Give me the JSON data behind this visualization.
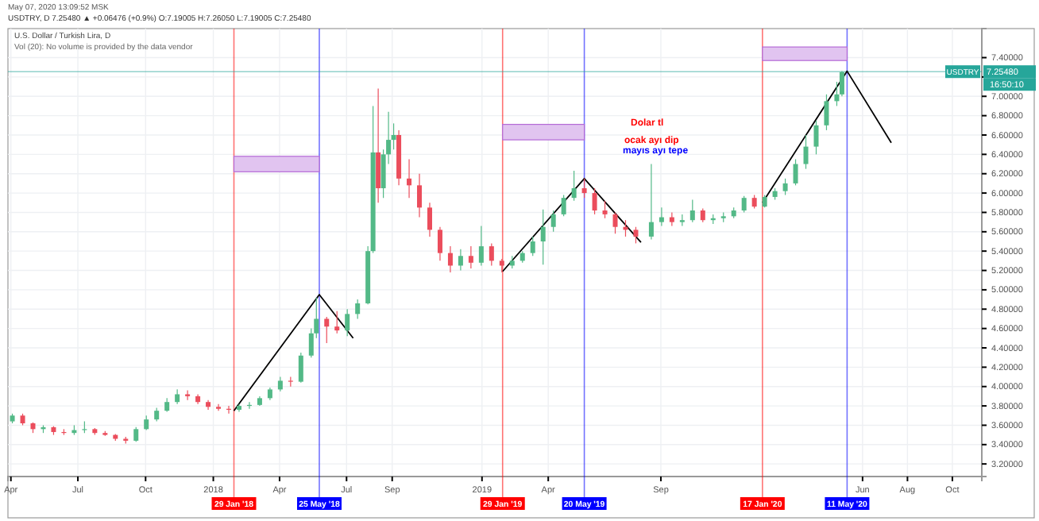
{
  "chart_data": {
    "type": "candlestick",
    "title": "U.S. Dollar / Turkish Lira, D",
    "subtitle": "USDTRY, D 7.25480 ▲ +0.06476 (+0.9%) O:7.19005 H:7.26050 L:7.19005 C:7.25480",
    "annotations": [
      "May 07, 2020 13:09:52 MSK",
      "Vol (20): No volume is provided by the data vendor",
      "Dolar tl",
      "ocak ayı dip",
      "mayıs ayı tepe",
      "USDTRY",
      "16:50:10"
    ],
    "x": [
      "2017-04-03",
      "2017-04-17",
      "2017-05-01",
      "2017-05-15",
      "2017-05-29",
      "2017-06-12",
      "2017-06-26",
      "2017-07-10",
      "2017-07-24",
      "2017-08-07",
      "2017-08-21",
      "2017-09-04",
      "2017-09-18",
      "2017-10-02",
      "2017-10-16",
      "2017-10-30",
      "2017-11-13",
      "2017-11-27",
      "2017-12-11",
      "2017-12-25",
      "2018-01-08",
      "2018-01-22",
      "2018-02-05",
      "2018-02-19",
      "2018-03-05",
      "2018-03-19",
      "2018-04-02",
      "2018-04-16",
      "2018-04-30",
      "2018-05-14",
      "2018-05-21",
      "2018-06-04",
      "2018-06-18",
      "2018-07-02",
      "2018-07-16",
      "2018-07-30",
      "2018-08-06",
      "2018-08-13",
      "2018-08-20",
      "2018-08-27",
      "2018-09-03",
      "2018-09-10",
      "2018-09-24",
      "2018-10-08",
      "2018-10-22",
      "2018-11-05",
      "2018-11-19",
      "2018-12-03",
      "2018-12-17",
      "2018-12-31",
      "2019-01-14",
      "2019-01-28",
      "2019-02-11",
      "2019-02-25",
      "2019-03-11",
      "2019-03-25",
      "2019-04-08",
      "2019-04-22",
      "2019-05-06",
      "2019-05-20",
      "2019-06-03",
      "2019-06-17",
      "2019-07-01",
      "2019-07-15",
      "2019-07-29",
      "2019-08-19",
      "2019-09-02",
      "2019-09-16",
      "2019-09-30",
      "2019-10-14",
      "2019-10-28",
      "2019-11-11",
      "2019-11-25",
      "2019-12-09",
      "2019-12-23",
      "2020-01-06",
      "2020-01-20",
      "2020-02-03",
      "2020-02-17",
      "2020-03-02",
      "2020-03-16",
      "2020-03-30",
      "2020-04-13",
      "2020-04-27",
      "2020-05-04"
    ],
    "ohlc": [
      [
        3.64,
        3.72,
        3.62,
        3.7
      ],
      [
        3.7,
        3.72,
        3.6,
        3.62
      ],
      [
        3.62,
        3.63,
        3.52,
        3.56
      ],
      [
        3.56,
        3.6,
        3.52,
        3.58
      ],
      [
        3.58,
        3.59,
        3.5,
        3.53
      ],
      [
        3.53,
        3.56,
        3.5,
        3.52
      ],
      [
        3.52,
        3.6,
        3.5,
        3.55
      ],
      [
        3.55,
        3.64,
        3.52,
        3.56
      ],
      [
        3.56,
        3.57,
        3.5,
        3.52
      ],
      [
        3.52,
        3.54,
        3.49,
        3.5
      ],
      [
        3.5,
        3.51,
        3.44,
        3.46
      ],
      [
        3.46,
        3.48,
        3.41,
        3.44
      ],
      [
        3.44,
        3.58,
        3.43,
        3.56
      ],
      [
        3.56,
        3.7,
        3.55,
        3.66
      ],
      [
        3.66,
        3.78,
        3.64,
        3.75
      ],
      [
        3.75,
        3.88,
        3.74,
        3.84
      ],
      [
        3.84,
        3.97,
        3.82,
        3.92
      ],
      [
        3.92,
        3.96,
        3.86,
        3.9
      ],
      [
        3.9,
        3.92,
        3.82,
        3.84
      ],
      [
        3.84,
        3.86,
        3.76,
        3.79
      ],
      [
        3.79,
        3.82,
        3.75,
        3.77
      ],
      [
        3.77,
        3.8,
        3.72,
        3.76
      ],
      [
        3.76,
        3.82,
        3.74,
        3.8
      ],
      [
        3.8,
        3.84,
        3.77,
        3.81
      ],
      [
        3.81,
        3.9,
        3.8,
        3.88
      ],
      [
        3.88,
        3.99,
        3.86,
        3.97
      ],
      [
        3.97,
        4.1,
        3.95,
        4.06
      ],
      [
        4.06,
        4.1,
        4.0,
        4.05
      ],
      [
        4.05,
        4.35,
        4.04,
        4.32
      ],
      [
        4.32,
        4.6,
        4.3,
        4.55
      ],
      [
        4.55,
        4.92,
        4.5,
        4.7
      ],
      [
        4.7,
        4.72,
        4.45,
        4.62
      ],
      [
        4.62,
        4.78,
        4.55,
        4.58
      ],
      [
        4.58,
        4.8,
        4.52,
        4.75
      ],
      [
        4.75,
        4.9,
        4.7,
        4.86
      ],
      [
        4.86,
        5.45,
        4.85,
        5.4
      ],
      [
        5.4,
        6.9,
        5.38,
        6.42
      ],
      [
        6.42,
        7.08,
        5.9,
        6.05
      ],
      [
        6.05,
        6.45,
        5.95,
        6.4
      ],
      [
        6.4,
        6.84,
        6.3,
        6.55
      ],
      [
        6.55,
        6.72,
        6.45,
        6.6
      ],
      [
        6.6,
        6.65,
        6.08,
        6.15
      ],
      [
        6.15,
        6.35,
        5.95,
        6.08
      ],
      [
        6.08,
        6.2,
        5.75,
        5.85
      ],
      [
        5.85,
        5.9,
        5.55,
        5.62
      ],
      [
        5.62,
        5.65,
        5.3,
        5.38
      ],
      [
        5.38,
        5.45,
        5.18,
        5.25
      ],
      [
        5.25,
        5.42,
        5.2,
        5.35
      ],
      [
        5.35,
        5.45,
        5.22,
        5.28
      ],
      [
        5.28,
        5.66,
        5.25,
        5.45
      ],
      [
        5.45,
        5.48,
        5.25,
        5.3
      ],
      [
        5.3,
        5.32,
        5.18,
        5.25
      ],
      [
        5.25,
        5.35,
        5.22,
        5.3
      ],
      [
        5.3,
        5.4,
        5.28,
        5.38
      ],
      [
        5.38,
        5.55,
        5.35,
        5.5
      ],
      [
        5.5,
        5.83,
        5.26,
        5.65
      ],
      [
        5.65,
        5.82,
        5.6,
        5.78
      ],
      [
        5.78,
        5.98,
        5.76,
        5.95
      ],
      [
        5.95,
        6.23,
        5.92,
        6.05
      ],
      [
        6.05,
        6.15,
        5.95,
        6.0
      ],
      [
        6.0,
        6.05,
        5.78,
        5.82
      ],
      [
        5.82,
        5.92,
        5.74,
        5.78
      ],
      [
        5.78,
        5.8,
        5.58,
        5.65
      ],
      [
        5.65,
        5.72,
        5.55,
        5.62
      ],
      [
        5.62,
        5.65,
        5.48,
        5.55
      ],
      [
        5.55,
        6.3,
        5.52,
        5.7
      ],
      [
        5.7,
        5.85,
        5.66,
        5.75
      ],
      [
        5.75,
        5.8,
        5.66,
        5.7
      ],
      [
        5.7,
        5.78,
        5.66,
        5.72
      ],
      [
        5.72,
        5.93,
        5.7,
        5.82
      ],
      [
        5.82,
        5.84,
        5.7,
        5.72
      ],
      [
        5.72,
        5.78,
        5.68,
        5.74
      ],
      [
        5.74,
        5.8,
        5.7,
        5.76
      ],
      [
        5.76,
        5.85,
        5.74,
        5.82
      ],
      [
        5.82,
        5.97,
        5.8,
        5.95
      ],
      [
        5.95,
        5.98,
        5.84,
        5.86
      ],
      [
        5.86,
        5.98,
        5.85,
        5.96
      ],
      [
        5.96,
        6.05,
        5.93,
        6.02
      ],
      [
        6.02,
        6.15,
        5.98,
        6.1
      ],
      [
        6.1,
        6.35,
        6.08,
        6.3
      ],
      [
        6.3,
        6.6,
        6.25,
        6.48
      ],
      [
        6.48,
        6.75,
        6.4,
        6.7
      ],
      [
        6.7,
        7.02,
        6.65,
        6.95
      ],
      [
        6.95,
        7.15,
        6.9,
        7.02
      ],
      [
        7.02,
        7.26,
        7.0,
        7.25
      ]
    ],
    "series": [
      {
        "type": "line",
        "color": "#000000",
        "x": [
          "2018-01-29",
          "2018-05-25",
          "2018-07-10"
        ],
        "values": [
          3.75,
          4.95,
          4.5
        ]
      },
      {
        "type": "line",
        "color": "#000000",
        "x": [
          "2019-01-29",
          "2019-05-20",
          "2019-08-05"
        ],
        "values": [
          5.19,
          6.15,
          5.49
        ]
      },
      {
        "type": "line",
        "color": "#000000",
        "x": [
          "2020-01-17",
          "2020-05-11",
          "2020-07-10"
        ],
        "values": [
          5.9,
          7.26,
          6.52
        ]
      }
    ],
    "xlim": [
      "2017-03-28",
      "2020-11-10"
    ],
    "ylim": [
      3.07,
      7.7
    ],
    "xticks": [
      {
        "value": "2017-04-01",
        "label": "Apr"
      },
      {
        "value": "2017-07-01",
        "label": "Jul"
      },
      {
        "value": "2017-10-01",
        "label": "Oct"
      },
      {
        "value": "2018-01-01",
        "label": "2018"
      },
      {
        "value": "2018-04-01",
        "label": "Apr"
      },
      {
        "value": "2018-07-01",
        "label": "Jul"
      },
      {
        "value": "2018-09-01",
        "label": "Sep"
      },
      {
        "value": "2019-01-01",
        "label": "2019"
      },
      {
        "value": "2019-04-01",
        "label": "Apr"
      },
      {
        "value": "2019-09-01",
        "label": "Sep"
      },
      {
        "value": "2020-06-01",
        "label": "Jun"
      },
      {
        "value": "2020-08-01",
        "label": "Aug"
      },
      {
        "value": "2020-10-01",
        "label": "Oct"
      }
    ],
    "yticks": [
      {
        "value": 3.2,
        "label": "3.20000"
      },
      {
        "value": 3.4,
        "label": "3.40000"
      },
      {
        "value": 3.6,
        "label": "3.60000"
      },
      {
        "value": 3.8,
        "label": "3.80000"
      },
      {
        "value": 4.0,
        "label": "4.00000"
      },
      {
        "value": 4.2,
        "label": "4.20000"
      },
      {
        "value": 4.4,
        "label": "4.40000"
      },
      {
        "value": 4.6,
        "label": "4.60000"
      },
      {
        "value": 4.8,
        "label": "4.80000"
      },
      {
        "value": 5.0,
        "label": "5.00000"
      },
      {
        "value": 5.2,
        "label": "5.20000"
      },
      {
        "value": 5.4,
        "label": "5.40000"
      },
      {
        "value": 5.6,
        "label": "5.60000"
      },
      {
        "value": 5.8,
        "label": "5.80000"
      },
      {
        "value": 6.0,
        "label": "6.00000"
      },
      {
        "value": 6.2,
        "label": "6.20000"
      },
      {
        "value": 6.4,
        "label": "6.40000"
      },
      {
        "value": 6.6,
        "label": "6.60000"
      },
      {
        "value": 6.8,
        "label": "6.80000"
      },
      {
        "value": 7.0,
        "label": "7.00000"
      },
      {
        "value": 7.2,
        "label": null
      },
      {
        "value": 7.4,
        "label": "7.40000"
      }
    ],
    "ref_lines": [
      {
        "axis": "x",
        "value": "2018-01-29",
        "label": "29 Jan '18",
        "color": "#ff0000"
      },
      {
        "axis": "x",
        "value": "2018-05-25",
        "label": "25 May '18",
        "color": "#0000ff"
      },
      {
        "axis": "x",
        "value": "2019-01-29",
        "label": "29 Jan '19",
        "color": "#ff0000"
      },
      {
        "axis": "x",
        "value": "2019-05-20",
        "label": "20 May '19",
        "color": "#0000ff"
      },
      {
        "axis": "x",
        "value": "2020-01-17",
        "label": "17 Jan '20",
        "color": "#ff0000"
      },
      {
        "axis": "x",
        "value": "2020-05-11",
        "label": "11 May '20",
        "color": "#0000ff"
      },
      {
        "axis": "y",
        "value": 7.2548,
        "label": "7.25480",
        "color": "#26a69a"
      }
    ],
    "grid": true
  }
}
